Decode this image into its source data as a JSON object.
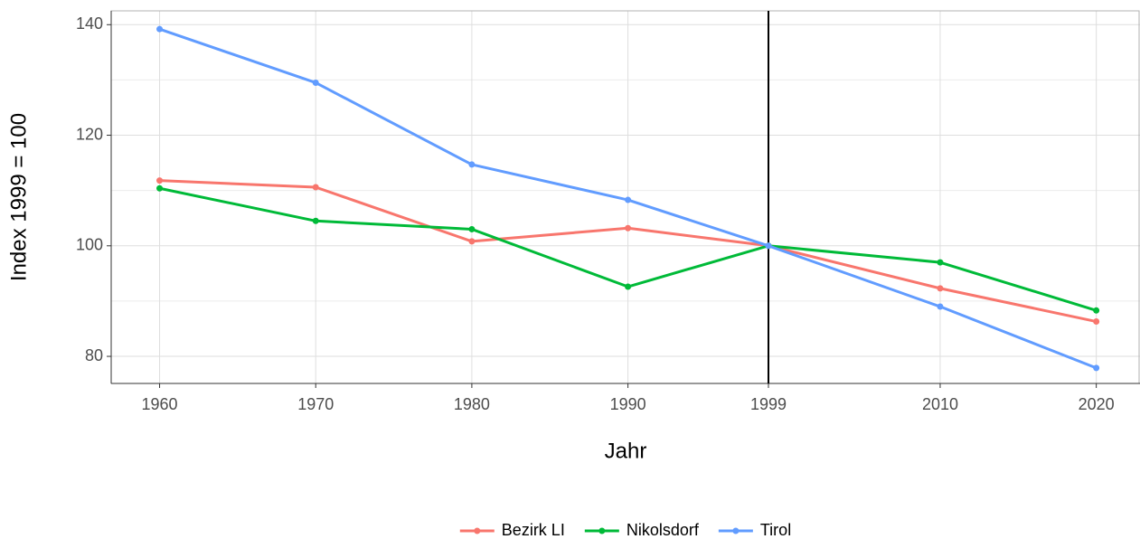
{
  "chart_data": {
    "type": "line",
    "x_label": "Jahr",
    "y_label": "Index 1999 = 100",
    "x": [
      1960,
      1970,
      1980,
      1990,
      1999,
      2010,
      2020
    ],
    "series": [
      {
        "name": "Bezirk LI",
        "color": "#F8766D",
        "values": [
          111.8,
          110.6,
          100.8,
          103.2,
          100,
          92.3,
          86.3
        ]
      },
      {
        "name": "Nikolsdorf",
        "color": "#00BA38",
        "values": [
          110.4,
          104.5,
          103.0,
          92.6,
          100,
          97.0,
          88.3
        ]
      },
      {
        "name": "Tirol",
        "color": "#619CFF",
        "values": [
          139.2,
          129.5,
          114.7,
          108.3,
          100,
          89.0,
          77.9
        ]
      }
    ],
    "xlim": [
      1956.9,
      2022.8
    ],
    "ylim": [
      75.1,
      142.5
    ],
    "xticks": [
      1960,
      1970,
      1980,
      1990,
      1999,
      2010,
      2020
    ],
    "yticks": [
      80,
      100,
      120,
      140
    ],
    "y_minor_ticks": [
      90,
      110,
      130
    ],
    "vline": 1999,
    "grid": true,
    "legend_position": "bottom"
  }
}
